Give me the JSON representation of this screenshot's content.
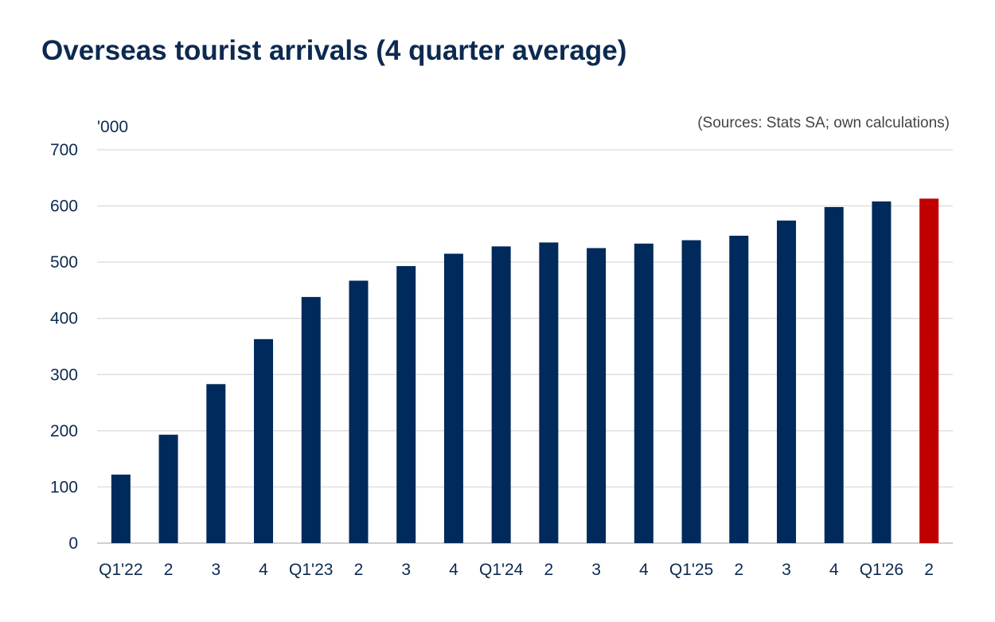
{
  "title": "Overseas tourist arrivals (4 quarter average)",
  "colors": {
    "bar": "#002a5c",
    "highlight": "#c00000",
    "text": "#0c2a4f",
    "grid": "#d9d9d9",
    "source": "#444444"
  },
  "chart_data": {
    "type": "bar",
    "title": "Overseas tourist arrivals (4 quarter average)",
    "ylabel": "'000",
    "xlabel": "",
    "source": "(Sources: Stats SA; own calculations)",
    "ylim": [
      0,
      700
    ],
    "yticks": [
      0,
      100,
      200,
      300,
      400,
      500,
      600,
      700
    ],
    "grid": true,
    "categories": [
      "Q1'22",
      "2",
      "3",
      "4",
      "Q1'23",
      "2",
      "3",
      "4",
      "Q1'24",
      "2",
      "3",
      "4",
      "Q1'25",
      "2",
      "3",
      "4",
      "Q1'26",
      "2"
    ],
    "values": [
      122,
      193,
      283,
      363,
      438,
      467,
      493,
      515,
      528,
      535,
      525,
      533,
      539,
      547,
      574,
      598,
      608,
      613
    ],
    "highlight_index": 17
  }
}
